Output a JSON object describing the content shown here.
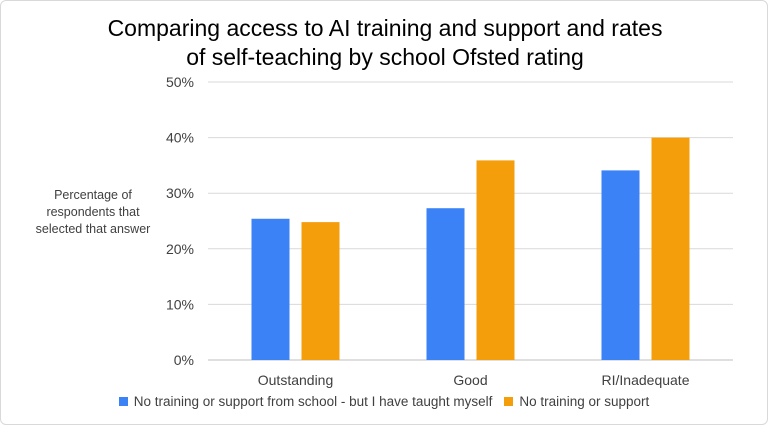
{
  "title_line1": "Comparing access to AI training and support and rates",
  "title_line2": "of self-teaching by school Ofsted rating",
  "ylabel": "Percentage of respondents that selected that answer",
  "chart_data": {
    "type": "bar",
    "title": "Comparing access to AI training and support and rates of self-teaching by school Ofsted rating",
    "ylabel": "Percentage of respondents that selected that answer",
    "xlabel": "",
    "categories": [
      "Outstanding",
      "Good",
      "RI/Inadequate"
    ],
    "series": [
      {
        "name": "No training or support from school - but I have taught myself",
        "color": "#3b82f6",
        "values": [
          25.4,
          27.3,
          34.1
        ]
      },
      {
        "name": "No training or support",
        "color": "#f59e0b",
        "values": [
          24.8,
          35.9,
          40.0
        ]
      }
    ],
    "ylim": [
      0,
      50
    ],
    "yticks": [
      "0%",
      "10%",
      "20%",
      "30%",
      "40%",
      "50%"
    ],
    "grid": true,
    "legend": "bottom"
  }
}
